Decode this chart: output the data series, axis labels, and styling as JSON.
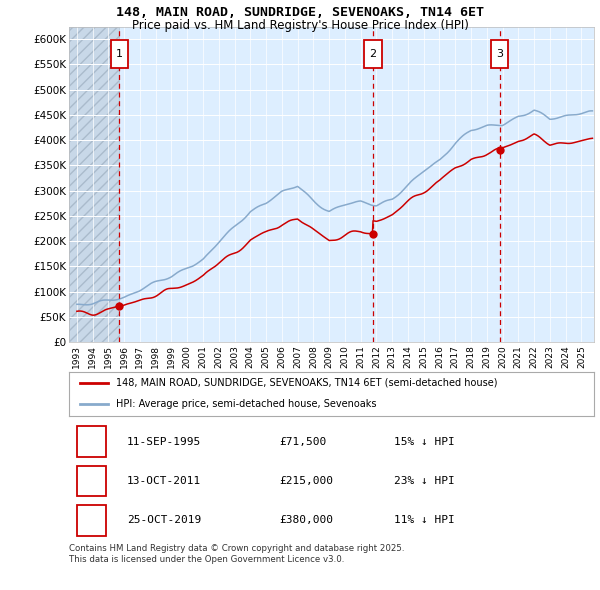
{
  "title": "148, MAIN ROAD, SUNDRIDGE, SEVENOAKS, TN14 6ET",
  "subtitle": "Price paid vs. HM Land Registry's House Price Index (HPI)",
  "ylabel_ticks": [
    "£0",
    "£50K",
    "£100K",
    "£150K",
    "£200K",
    "£250K",
    "£300K",
    "£350K",
    "£400K",
    "£450K",
    "£500K",
    "£550K",
    "£600K"
  ],
  "ytick_vals": [
    0,
    50000,
    100000,
    150000,
    200000,
    250000,
    300000,
    350000,
    400000,
    450000,
    500000,
    550000,
    600000
  ],
  "ylim": [
    0,
    625000
  ],
  "xlim_start": 1992.5,
  "xlim_end": 2025.8,
  "transactions": [
    {
      "label": "1",
      "date": "11-SEP-1995",
      "price": 71500,
      "year": 1995.7,
      "pct": "15%",
      "direction": "↓"
    },
    {
      "label": "2",
      "date": "13-OCT-2011",
      "price": 215000,
      "year": 2011.78,
      "pct": "23%",
      "direction": "↓"
    },
    {
      "label": "3",
      "date": "25-OCT-2019",
      "price": 380000,
      "year": 2019.81,
      "pct": "11%",
      "direction": "↓"
    }
  ],
  "legend_line1": "148, MAIN ROAD, SUNDRIDGE, SEVENOAKS, TN14 6ET (semi-detached house)",
  "legend_line2": "HPI: Average price, semi-detached house, Sevenoaks",
  "footnote1": "Contains HM Land Registry data © Crown copyright and database right 2025.",
  "footnote2": "This data is licensed under the Open Government Licence v3.0.",
  "line_color_red": "#cc0000",
  "line_color_blue": "#88aacc",
  "background_color": "#ddeeff",
  "hatch_bg_color": "#c8d8e8",
  "marker_label_border": "#cc0000"
}
